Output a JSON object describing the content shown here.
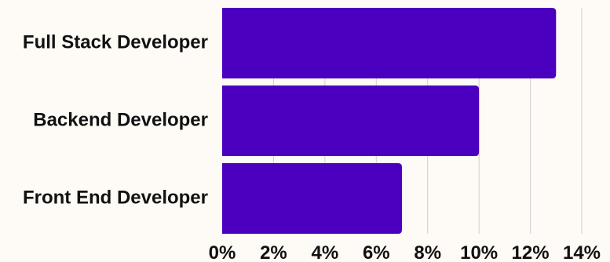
{
  "chart_data": {
    "type": "bar",
    "orientation": "horizontal",
    "title": "",
    "xlabel": "",
    "ylabel": "",
    "categories": [
      "Full Stack Developer",
      "Backend Developer",
      "Front End Developer"
    ],
    "values": [
      13,
      10,
      7
    ],
    "value_unit": "%",
    "xlim": [
      0,
      14
    ],
    "x_ticks": [
      0,
      2,
      4,
      6,
      8,
      10,
      12,
      14
    ],
    "x_tick_labels": [
      "0%",
      "2%",
      "4%",
      "6%",
      "8%",
      "10%",
      "12%",
      "14%"
    ],
    "grid": true,
    "legend": "none"
  },
  "colors": {
    "background": "#fefaf6",
    "bar": "#4b00c0",
    "grid": "#cfcfcf",
    "text": "#111111"
  }
}
